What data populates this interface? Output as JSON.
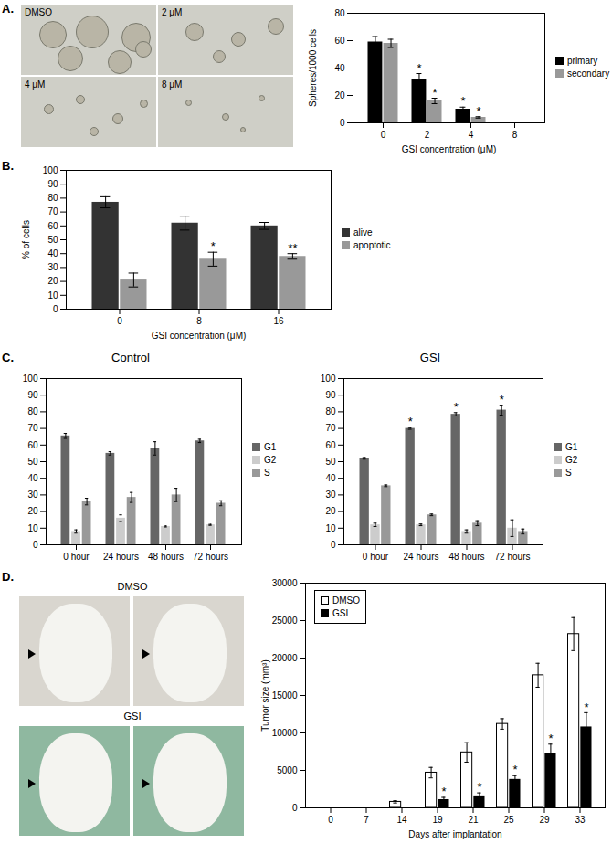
{
  "panel_labels": [
    "A.",
    "B.",
    "C.",
    "D."
  ],
  "images": [
    {
      "labels": [
        "DMSO",
        "2 μM",
        "4 μM",
        "8 μM"
      ]
    },
    {
      "labels": [
        "DMSO",
        "GSI"
      ]
    }
  ],
  "chart_data": [
    {
      "type": "bar",
      "ylabel": "Spheres/1000 cells",
      "xlabel": "GSI concentration (μM)",
      "categories": [
        "0",
        "2",
        "4",
        "8"
      ],
      "series": [
        {
          "name": "primary",
          "color": "#000000",
          "values": [
            59,
            32,
            10,
            0
          ],
          "errors": [
            4,
            4,
            1.5,
            0
          ]
        },
        {
          "name": "secondary",
          "color": "#999999",
          "values": [
            58,
            16,
            4,
            0
          ],
          "errors": [
            3,
            2,
            0.5,
            0
          ]
        }
      ],
      "annotations": [
        {
          "text": "*",
          "category": "2",
          "series": "primary"
        },
        {
          "text": "*",
          "category": "2",
          "series": "secondary"
        },
        {
          "text": "*",
          "category": "4",
          "series": "primary"
        },
        {
          "text": "*",
          "category": "4",
          "series": "secondary"
        }
      ],
      "ylim": [
        0,
        80
      ],
      "yticks": [
        0,
        20,
        40,
        60,
        80
      ],
      "grid": false,
      "legend": "right"
    },
    {
      "type": "bar",
      "ylabel": "% of cells",
      "xlabel": "GSI concentration (μM)",
      "categories": [
        "0",
        "8",
        "16"
      ],
      "series": [
        {
          "name": "alive",
          "color": "#333333",
          "values": [
            77,
            62,
            60
          ],
          "errors": [
            4,
            5,
            2.5
          ]
        },
        {
          "name": "apoptotic",
          "color": "#999999",
          "values": [
            21,
            36,
            38
          ],
          "errors": [
            5,
            5,
            2
          ]
        }
      ],
      "annotations": [
        {
          "text": "*",
          "category": "8",
          "series": "apoptotic"
        },
        {
          "text": "**",
          "category": "16",
          "series": "apoptotic"
        }
      ],
      "ylim": [
        0,
        100
      ],
      "yticks": [
        0,
        10,
        20,
        30,
        40,
        50,
        60,
        70,
        80,
        90,
        100
      ],
      "grid": false,
      "legend": "right"
    },
    {
      "type": "bar",
      "title": "Control",
      "categories": [
        "0 hour",
        "24 hours",
        "48 hours",
        "72 hours"
      ],
      "series": [
        {
          "name": "G1",
          "color": "#666666",
          "values": [
            65.5,
            55,
            58,
            62.5
          ],
          "errors": [
            1.5,
            1,
            4,
            1
          ]
        },
        {
          "name": "G2",
          "color": "#cccccc",
          "values": [
            8,
            16,
            11,
            12
          ],
          "errors": [
            1,
            2,
            0.3,
            0.3
          ]
        },
        {
          "name": "S",
          "color": "#999999",
          "values": [
            26,
            28.5,
            30,
            25
          ],
          "errors": [
            2,
            3,
            4,
            1.5
          ]
        }
      ],
      "annotations": [],
      "ylim": [
        0,
        100
      ],
      "yticks": [
        0,
        10,
        20,
        30,
        40,
        50,
        60,
        70,
        80,
        90,
        100
      ],
      "grid": false,
      "legend": "right"
    },
    {
      "type": "bar",
      "title": "GSI",
      "categories": [
        "0 hour",
        "24 hours",
        "48 hours",
        "72 hours"
      ],
      "series": [
        {
          "name": "G1",
          "color": "#666666",
          "values": [
            52,
            70,
            78.5,
            81
          ],
          "errors": [
            0.5,
            0.5,
            1,
            3
          ]
        },
        {
          "name": "G2",
          "color": "#cccccc",
          "values": [
            12,
            12,
            8,
            10
          ],
          "errors": [
            1,
            0.5,
            1,
            5
          ]
        },
        {
          "name": "S",
          "color": "#999999",
          "values": [
            35.5,
            18,
            13,
            8
          ],
          "errors": [
            0.5,
            0.5,
            1.5,
            1.5
          ]
        }
      ],
      "annotations": [
        {
          "text": "*",
          "category": "24 hours",
          "series": "G1"
        },
        {
          "text": "*",
          "category": "48 hours",
          "series": "G1"
        },
        {
          "text": "*",
          "category": "72 hours",
          "series": "G1"
        }
      ],
      "ylim": [
        0,
        100
      ],
      "yticks": [
        0,
        10,
        20,
        30,
        40,
        50,
        60,
        70,
        80,
        90,
        100
      ],
      "grid": false,
      "legend": "right"
    },
    {
      "type": "bar",
      "ylabel": "Tumor size (mm³)",
      "xlabel": "Days after implantation",
      "categories": [
        "0",
        "7",
        "14",
        "19",
        "21",
        "25",
        "29",
        "33"
      ],
      "series": [
        {
          "name": "DMSO",
          "color": "#ffffff",
          "values": [
            0,
            0,
            800,
            4700,
            7400,
            11200,
            17700,
            23200
          ],
          "errors": [
            0,
            0,
            150,
            700,
            1300,
            700,
            1600,
            2200
          ]
        },
        {
          "name": "GSI",
          "color": "#000000",
          "values": [
            0,
            0,
            0,
            1100,
            1600,
            3800,
            7300,
            10800
          ],
          "errors": [
            0,
            0,
            0,
            300,
            400,
            500,
            1200,
            1900
          ]
        }
      ],
      "annotations": [
        {
          "text": "*",
          "category": "19",
          "series": "GSI"
        },
        {
          "text": "*",
          "category": "21",
          "series": "GSI"
        },
        {
          "text": "*",
          "category": "25",
          "series": "GSI"
        },
        {
          "text": "*",
          "category": "29",
          "series": "GSI"
        },
        {
          "text": "*",
          "category": "33",
          "series": "GSI"
        }
      ],
      "ylim": [
        0,
        30000
      ],
      "yticks": [
        0,
        5000,
        10000,
        15000,
        20000,
        25000,
        30000
      ],
      "grid": false,
      "legend": "top-left"
    }
  ]
}
